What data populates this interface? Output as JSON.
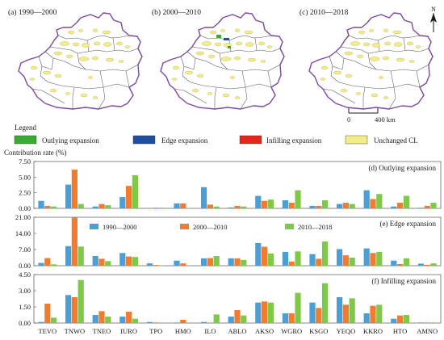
{
  "maps": {
    "panels": [
      {
        "label": "(a) 1990—2000"
      },
      {
        "label": "(b) 2000—2010"
      },
      {
        "label": "(c) 2010—2018"
      }
    ],
    "north_label": "N",
    "scale_zero": "0",
    "scale_end": "400 km"
  },
  "legend": {
    "title": "Legend",
    "items": [
      {
        "label": "Outlying expansion",
        "color": "#3aaa35"
      },
      {
        "label": "Edge expansion",
        "color": "#1f4e9c"
      },
      {
        "label": "Infilling expansion",
        "color": "#e4261f"
      },
      {
        "label": "Unchanged CL",
        "color": "#f2ec8a"
      }
    ]
  },
  "colors": {
    "boundary": "#7b4a9b",
    "county_lines": "#555555",
    "frame": "#555555"
  },
  "chart_data": {
    "type": "bar",
    "ylabel": "Contribution rate (%)",
    "categories": [
      "TEVO",
      "TNWO",
      "TNEO",
      "IURO",
      "TPO",
      "HMO",
      "ILO",
      "ABLO",
      "AKSO",
      "WGRO",
      "KSGO",
      "YEQO",
      "KKRO",
      "HTO",
      "AMNO"
    ],
    "series_meta": [
      {
        "name": "1990—2000",
        "color": "#4b9fd5"
      },
      {
        "name": "2000—2010",
        "color": "#ee7d31"
      },
      {
        "name": "2010—2018",
        "color": "#7ec84a"
      }
    ],
    "panels": [
      {
        "title": "(d) Outlying expansion",
        "ylim": [
          0,
          7.5
        ],
        "yticks": [
          "0.00",
          "2.50",
          "5.00",
          "7.50"
        ],
        "yticks_values": [
          0,
          2.5,
          5,
          7.5
        ],
        "series": [
          {
            "name": "1990—2000",
            "values": [
              1.2,
              3.8,
              0.3,
              1.8,
              0.05,
              0.8,
              3.4,
              0.15,
              2.0,
              1.3,
              0.4,
              0.7,
              2.9,
              0.3,
              0.1
            ]
          },
          {
            "name": "2000—2010",
            "values": [
              0.4,
              6.2,
              0.7,
              3.6,
              0.1,
              0.8,
              0.6,
              0.4,
              1.2,
              0.9,
              0.4,
              0.9,
              1.5,
              0.9,
              0.4
            ]
          },
          {
            "name": "2010—2018",
            "values": [
              0.3,
              0.7,
              0.5,
              5.3,
              0.1,
              0.05,
              0.3,
              0.3,
              1.4,
              2.9,
              1.3,
              0.7,
              2.3,
              2.0,
              0.9
            ]
          }
        ]
      },
      {
        "title": "(e) Edge expansion",
        "ylim": [
          0,
          21
        ],
        "yticks": [
          "0.00",
          "7.00",
          "14.00",
          "21.00"
        ],
        "yticks_values": [
          0,
          7,
          14,
          21
        ],
        "series": [
          {
            "name": "1990—2000",
            "values": [
              1.2,
              8.5,
              4.2,
              5.5,
              1.0,
              2.2,
              3.2,
              3.2,
              9.8,
              6.0,
              5.0,
              7.2,
              7.5,
              2.2,
              0.9
            ]
          },
          {
            "name": "2000—2010",
            "values": [
              3.3,
              21.0,
              3.0,
              4.0,
              0.3,
              1.0,
              3.3,
              3.2,
              8.2,
              1.8,
              3.0,
              4.5,
              5.5,
              0.7,
              0.4
            ]
          },
          {
            "name": "2010—2018",
            "values": [
              0.6,
              8.3,
              2.0,
              3.8,
              0.1,
              0.1,
              4.2,
              2.5,
              5.3,
              6.2,
              10.5,
              3.5,
              6.0,
              3.2,
              1.0
            ]
          }
        ]
      },
      {
        "title": "(f) Infilling expansion",
        "ylim": [
          0,
          4.5
        ],
        "yticks": [
          "0.00",
          "1.50",
          "3.00",
          "4.50"
        ],
        "yticks_values": [
          0,
          1.5,
          3,
          4.5
        ],
        "series": [
          {
            "name": "1990—2000",
            "values": [
              0.1,
              2.6,
              0.75,
              0.6,
              0.1,
              0.05,
              0.1,
              0.6,
              1.9,
              0.9,
              1.9,
              2.4,
              0.9,
              0.4,
              0.05
            ]
          },
          {
            "name": "2000—2010",
            "values": [
              1.8,
              2.4,
              1.1,
              1.05,
              0.05,
              0.3,
              0.05,
              1.2,
              2.0,
              0.9,
              1.4,
              1.7,
              1.6,
              0.7,
              0.05
            ]
          },
          {
            "name": "2010—2018",
            "values": [
              0.5,
              4.0,
              0.6,
              0.4,
              0.0,
              0.05,
              0.8,
              0.7,
              1.9,
              2.8,
              3.7,
              2.3,
              1.7,
              0.75,
              0.05
            ]
          }
        ]
      }
    ]
  }
}
